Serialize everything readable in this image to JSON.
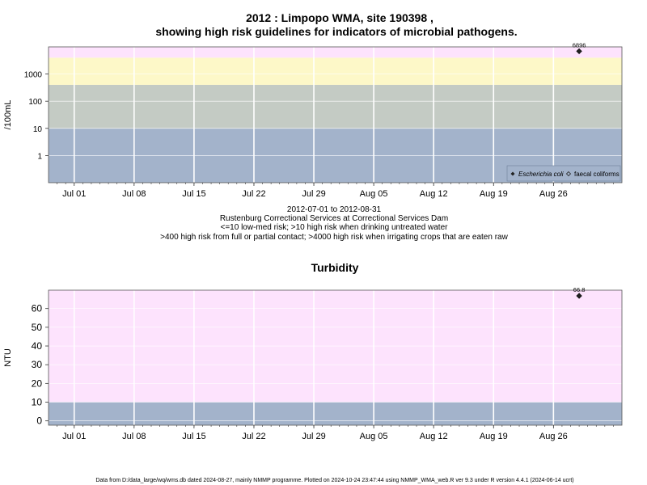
{
  "title_line1": "2012 : Limpopo WMA, site 190398 ,",
  "title_line2": "showing high risk guidelines for indicators of microbial pathogens.",
  "subtitle_lines": [
    "2012-07-01 to 2012-08-31",
    "Rustenburg Correctional Services at Correctional Services Dam",
    "<=10 low-med risk; >10 high risk when drinking untreated water",
    ">400 high risk from full or partial contact; >4000 high risk when irrigating crops that are eaten raw"
  ],
  "footer": "Data from D:/data_large/wq/wms.db dated 2024-08-27, mainly NMMP programme. Plotted on 2024-10-24 23:47:44 using NMMP_WMA_web.R ver 9.3 under R version 4.4.1 (2024-06-14 ucrt)",
  "chart_data": [
    {
      "type": "scatter",
      "ylabel": "/100mL",
      "yscale": "log",
      "ylim": [
        0.1,
        10000
      ],
      "x_range": [
        "2012-06-28",
        "2012-09-03"
      ],
      "x_ticks": [
        {
          "date": "2012-07-01",
          "label": "Jul 01"
        },
        {
          "date": "2012-07-08",
          "label": "Jul 08"
        },
        {
          "date": "2012-07-15",
          "label": "Jul 15"
        },
        {
          "date": "2012-07-22",
          "label": "Jul 22"
        },
        {
          "date": "2012-07-29",
          "label": "Jul 29"
        },
        {
          "date": "2012-08-05",
          "label": "Aug 05"
        },
        {
          "date": "2012-08-12",
          "label": "Aug 12"
        },
        {
          "date": "2012-08-19",
          "label": "Aug 19"
        },
        {
          "date": "2012-08-26",
          "label": "Aug 26"
        }
      ],
      "y_ticks": [
        {
          "value": 1,
          "label": "1"
        },
        {
          "value": 10,
          "label": "10"
        },
        {
          "value": 100,
          "label": "100"
        },
        {
          "value": 1000,
          "label": "1000"
        }
      ],
      "bands": [
        {
          "from": 0.1,
          "to": 10,
          "color": "#a3b3cb"
        },
        {
          "from": 10,
          "to": 400,
          "color": "#c4cbc4"
        },
        {
          "from": 400,
          "to": 4000,
          "color": "#fdf8c8"
        },
        {
          "from": 4000,
          "to": 10000,
          "color": "#fde3fd"
        }
      ],
      "grid": true,
      "legend_position": "bottom-right",
      "series": [
        {
          "name": "Escherichia coli",
          "marker": "filled-diamond",
          "points": [
            {
              "x": "2012-08-29",
              "y": 6896,
              "label": "6896"
            }
          ]
        },
        {
          "name": "faecal coliforms",
          "marker": "open-diamond",
          "points": []
        }
      ]
    },
    {
      "type": "scatter",
      "title": "Turbidity",
      "ylabel": "NTU",
      "ylim": [
        -2.3,
        69.8
      ],
      "x_range": [
        "2012-06-28",
        "2012-09-03"
      ],
      "x_ticks": [
        {
          "date": "2012-07-01",
          "label": "Jul 01"
        },
        {
          "date": "2012-07-08",
          "label": "Jul 08"
        },
        {
          "date": "2012-07-15",
          "label": "Jul 15"
        },
        {
          "date": "2012-07-22",
          "label": "Jul 22"
        },
        {
          "date": "2012-07-29",
          "label": "Jul 29"
        },
        {
          "date": "2012-08-05",
          "label": "Aug 05"
        },
        {
          "date": "2012-08-12",
          "label": "Aug 12"
        },
        {
          "date": "2012-08-19",
          "label": "Aug 19"
        },
        {
          "date": "2012-08-26",
          "label": "Aug 26"
        }
      ],
      "y_ticks": [
        {
          "value": 0,
          "label": "0"
        },
        {
          "value": 10,
          "label": "10"
        },
        {
          "value": 20,
          "label": "20"
        },
        {
          "value": 30,
          "label": "30"
        },
        {
          "value": 40,
          "label": "40"
        },
        {
          "value": 50,
          "label": "50"
        },
        {
          "value": 60,
          "label": "60"
        }
      ],
      "bands": [
        {
          "from": -2.3,
          "to": 10,
          "color": "#a3b3cb"
        },
        {
          "from": 10,
          "to": 69.8,
          "color": "#fde3fd"
        }
      ],
      "grid": true,
      "series": [
        {
          "name": "Turbidity",
          "marker": "filled-diamond",
          "points": [
            {
              "x": "2012-08-29",
              "y": 66.8,
              "label": "66.8"
            }
          ]
        }
      ]
    }
  ]
}
